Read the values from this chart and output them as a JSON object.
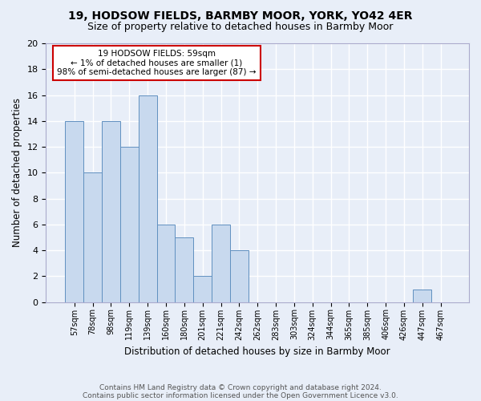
{
  "title1": "19, HODSOW FIELDS, BARMBY MOOR, YORK, YO42 4ER",
  "title2": "Size of property relative to detached houses in Barmby Moor",
  "xlabel": "Distribution of detached houses by size in Barmby Moor",
  "ylabel": "Number of detached properties",
  "categories": [
    "57sqm",
    "78sqm",
    "98sqm",
    "119sqm",
    "139sqm",
    "160sqm",
    "180sqm",
    "201sqm",
    "221sqm",
    "242sqm",
    "262sqm",
    "283sqm",
    "303sqm",
    "324sqm",
    "344sqm",
    "365sqm",
    "385sqm",
    "406sqm",
    "426sqm",
    "447sqm",
    "467sqm"
  ],
  "values": [
    14,
    10,
    14,
    12,
    16,
    6,
    5,
    2,
    6,
    4,
    0,
    0,
    0,
    0,
    0,
    0,
    0,
    0,
    0,
    1,
    0
  ],
  "bar_color": "#c8d9ee",
  "bar_edge_color": "#6090c0",
  "ylim": [
    0,
    20
  ],
  "yticks": [
    0,
    2,
    4,
    6,
    8,
    10,
    12,
    14,
    16,
    18,
    20
  ],
  "annotation_box_text": "19 HODSOW FIELDS: 59sqm\n← 1% of detached houses are smaller (1)\n98% of semi-detached houses are larger (87) →",
  "annotation_box_color": "#ffffff",
  "annotation_box_edge_color": "#cc0000",
  "footer1": "Contains HM Land Registry data © Crown copyright and database right 2024.",
  "footer2": "Contains public sector information licensed under the Open Government Licence v3.0.",
  "background_color": "#e8eef8",
  "grid_color": "#ffffff"
}
